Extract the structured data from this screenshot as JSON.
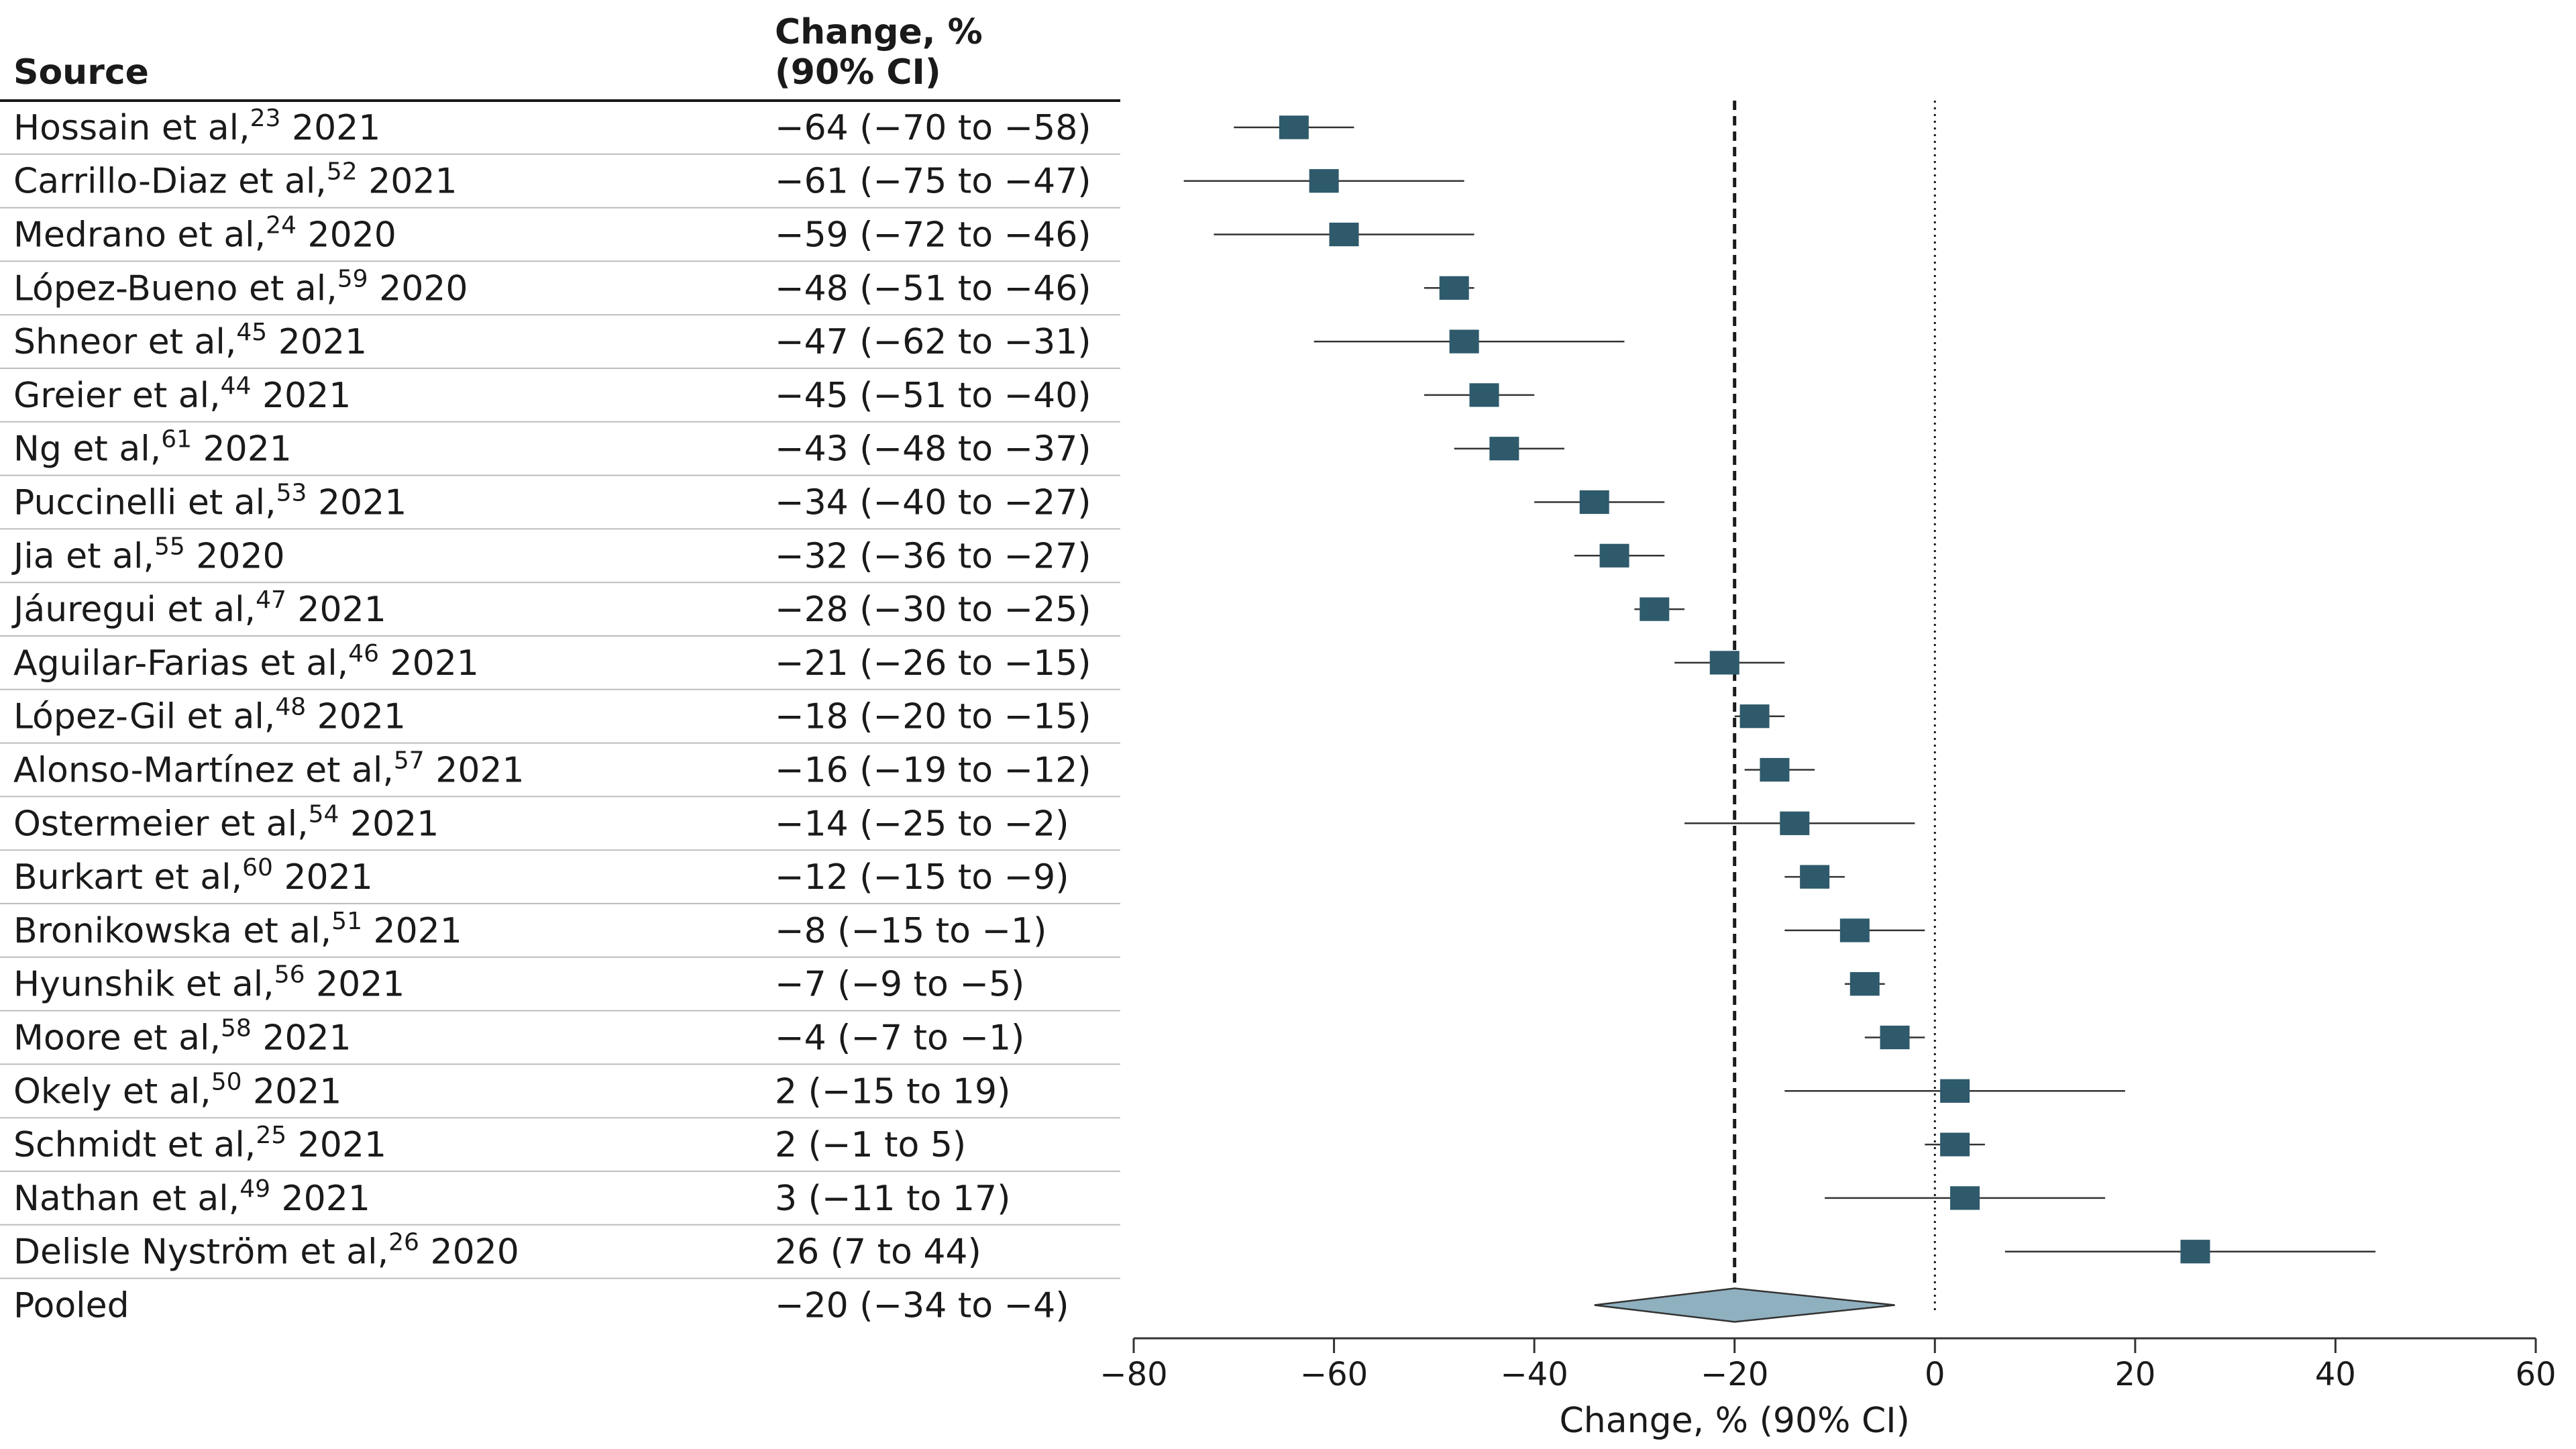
{
  "headers": {
    "source": "Source",
    "change_line1": "Change, %",
    "change_line2": "(90% CI)"
  },
  "chart_data": {
    "type": "forest",
    "xlabel": "Change, % (90% CI)",
    "xlim": [
      -80,
      60
    ],
    "xticks": [
      -80,
      -60,
      -40,
      -20,
      0,
      20,
      40,
      60
    ],
    "xtick_labels": [
      "−80",
      "−60",
      "−40",
      "−20",
      "0",
      "20",
      "40",
      "60"
    ],
    "reference_lines": [
      {
        "x": -20,
        "style": "dashed"
      },
      {
        "x": 0,
        "style": "dotted"
      }
    ],
    "colors": {
      "marker": "#2e5a6b",
      "diamond": "#8fb0bf",
      "line": "#333333"
    },
    "studies": [
      {
        "name": "Hossain et al,",
        "ref": "23",
        "year": "2021",
        "text": "−64 (−70 to −58)",
        "est": -64,
        "lo": -70,
        "hi": -58
      },
      {
        "name": "Carrillo-Diaz et al,",
        "ref": "52",
        "year": "2021",
        "text": "−61 (−75 to −47)",
        "est": -61,
        "lo": -75,
        "hi": -47
      },
      {
        "name": "Medrano et al,",
        "ref": "24",
        "year": "2020",
        "text": "−59 (−72 to −46)",
        "est": -59,
        "lo": -72,
        "hi": -46
      },
      {
        "name": "López-Bueno et al,",
        "ref": "59",
        "year": "2020",
        "text": "−48 (−51 to −46)",
        "est": -48,
        "lo": -51,
        "hi": -46
      },
      {
        "name": "Shneor et al,",
        "ref": "45",
        "year": "2021",
        "text": "−47 (−62 to −31)",
        "est": -47,
        "lo": -62,
        "hi": -31
      },
      {
        "name": "Greier et al,",
        "ref": "44",
        "year": "2021",
        "text": "−45 (−51 to −40)",
        "est": -45,
        "lo": -51,
        "hi": -40
      },
      {
        "name": "Ng et al,",
        "ref": "61",
        "year": "2021",
        "text": "−43 (−48 to −37)",
        "est": -43,
        "lo": -48,
        "hi": -37
      },
      {
        "name": "Puccinelli et al,",
        "ref": "53",
        "year": "2021",
        "text": "−34 (−40 to −27)",
        "est": -34,
        "lo": -40,
        "hi": -27
      },
      {
        "name": "Jia et al,",
        "ref": "55",
        "year": "2020",
        "text": "−32 (−36 to −27)",
        "est": -32,
        "lo": -36,
        "hi": -27
      },
      {
        "name": "Jáuregui et al,",
        "ref": "47",
        "year": "2021",
        "text": "−28 (−30 to −25)",
        "est": -28,
        "lo": -30,
        "hi": -25
      },
      {
        "name": "Aguilar-Farias et al,",
        "ref": "46",
        "year": "2021",
        "text": "−21 (−26 to −15)",
        "est": -21,
        "lo": -26,
        "hi": -15
      },
      {
        "name": "López-Gil et al,",
        "ref": "48",
        "year": "2021",
        "text": "−18 (−20 to −15)",
        "est": -18,
        "lo": -20,
        "hi": -15
      },
      {
        "name": "Alonso-Martínez et al,",
        "ref": "57",
        "year": "2021",
        "text": "−16 (−19 to −12)",
        "est": -16,
        "lo": -19,
        "hi": -12
      },
      {
        "name": "Ostermeier et al,",
        "ref": "54",
        "year": "2021",
        "text": "−14 (−25 to −2)",
        "est": -14,
        "lo": -25,
        "hi": -2
      },
      {
        "name": "Burkart et al,",
        "ref": "60",
        "year": "2021",
        "text": "−12 (−15 to −9)",
        "est": -12,
        "lo": -15,
        "hi": -9
      },
      {
        "name": "Bronikowska et al,",
        "ref": "51",
        "year": "2021",
        "text": "−8 (−15 to −1)",
        "est": -8,
        "lo": -15,
        "hi": -1
      },
      {
        "name": "Hyunshik et al,",
        "ref": "56",
        "year": "2021",
        "text": "−7 (−9 to −5)",
        "est": -7,
        "lo": -9,
        "hi": -5
      },
      {
        "name": "Moore et al,",
        "ref": "58",
        "year": "2021",
        "text": "−4 (−7 to −1)",
        "est": -4,
        "lo": -7,
        "hi": -1
      },
      {
        "name": "Okely et al,",
        "ref": "50",
        "year": "2021",
        "text": "2 (−15 to 19)",
        "est": 2,
        "lo": -15,
        "hi": 19
      },
      {
        "name": "Schmidt et al,",
        "ref": "25",
        "year": "2021",
        "text": "2 (−1 to 5)",
        "est": 2,
        "lo": -1,
        "hi": 5
      },
      {
        "name": "Nathan et al,",
        "ref": "49",
        "year": "2021",
        "text": "3 (−11 to 17)",
        "est": 3,
        "lo": -11,
        "hi": 17
      },
      {
        "name": "Delisle Nyström et al,",
        "ref": "26",
        "year": "2020",
        "text": "26 (7 to 44)",
        "est": 26,
        "lo": 7,
        "hi": 44
      }
    ],
    "pooled": {
      "name": "Pooled",
      "text": "−20 (−34 to −4)",
      "est": -20,
      "lo": -34,
      "hi": -4
    }
  }
}
